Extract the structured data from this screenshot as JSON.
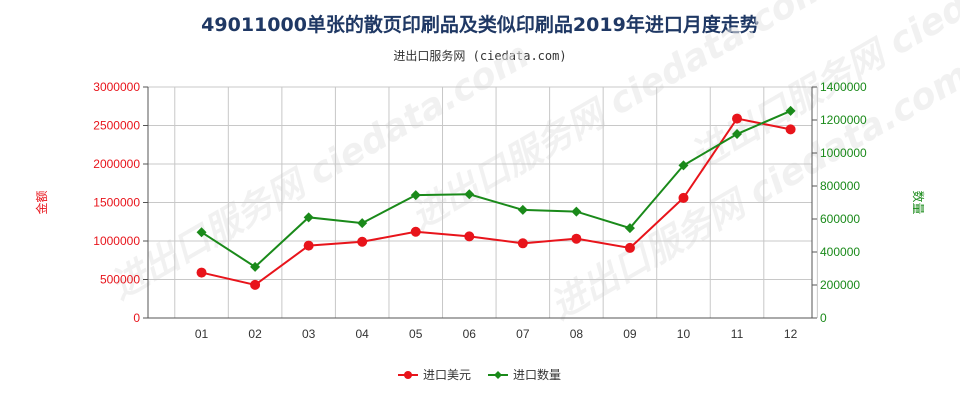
{
  "title": "49011000单张的散页印刷品及类似印刷品2019年进口月度走势",
  "subtitle": "进出口服务网 (ciedata.com)",
  "watermark": "进出口服务网 ciedata.com",
  "colors": {
    "amount": "#e8141b",
    "quantity": "#1a8a1a",
    "grid": "#c8c8c8",
    "axis": "#555555"
  },
  "chart_data": {
    "type": "line",
    "categories": [
      "01",
      "02",
      "03",
      "04",
      "05",
      "06",
      "07",
      "08",
      "09",
      "10",
      "11",
      "12"
    ],
    "series": [
      {
        "name": "进口美元",
        "axis": "left",
        "values": [
          590000,
          430000,
          940000,
          990000,
          1120000,
          1060000,
          970000,
          1030000,
          910000,
          1560000,
          2590000,
          2450000
        ]
      },
      {
        "name": "进口数量",
        "axis": "right",
        "values": [
          520000,
          310000,
          610000,
          575000,
          745000,
          750000,
          655000,
          645000,
          545000,
          925000,
          1115000,
          1255000
        ]
      }
    ],
    "ylabel_left": "金额",
    "ylabel_right": "数量",
    "ylim_left": [
      0,
      3000000
    ],
    "ylim_right": [
      0,
      1400000
    ],
    "yticks_left": [
      0,
      500000,
      1000000,
      1500000,
      2000000,
      2500000,
      3000000
    ],
    "yticks_right": [
      0,
      200000,
      400000,
      600000,
      800000,
      1000000,
      1200000,
      1400000
    ],
    "grid": true,
    "legend_position": "bottom"
  }
}
